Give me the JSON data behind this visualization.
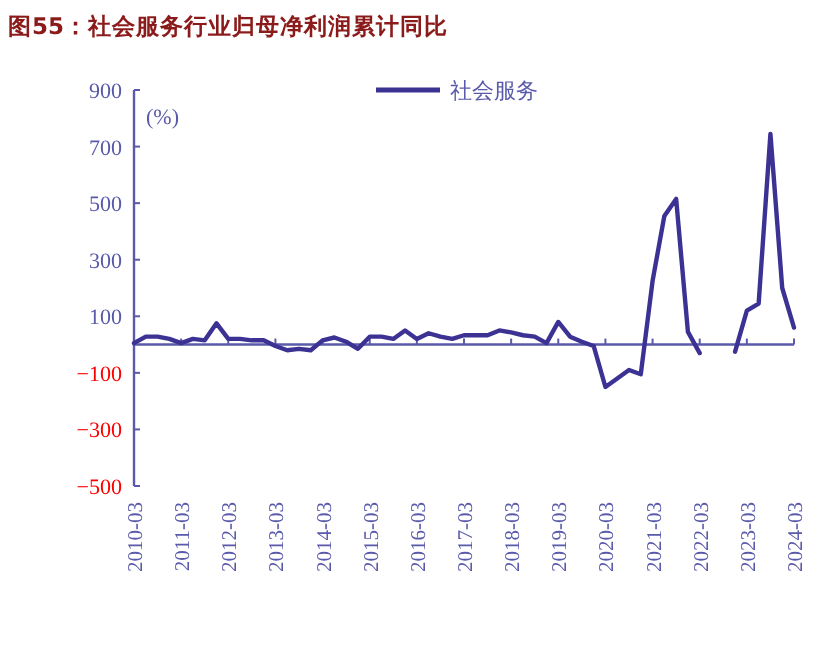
{
  "chart_data": {
    "type": "line",
    "title": "图55：社会服务行业归母净利润累计同比",
    "ylabel": "(%)",
    "x": [
      "2010-03",
      "2010-06",
      "2010-09",
      "2010-12",
      "2011-03",
      "2011-06",
      "2011-09",
      "2011-12",
      "2012-03",
      "2012-06",
      "2012-09",
      "2012-12",
      "2013-03",
      "2013-06",
      "2013-09",
      "2013-12",
      "2014-03",
      "2014-06",
      "2014-09",
      "2014-12",
      "2015-03",
      "2015-06",
      "2015-09",
      "2015-12",
      "2016-03",
      "2016-06",
      "2016-09",
      "2016-12",
      "2017-03",
      "2017-06",
      "2017-09",
      "2017-12",
      "2018-03",
      "2018-06",
      "2018-09",
      "2018-12",
      "2019-03",
      "2019-06",
      "2019-09",
      "2019-12",
      "2020-03",
      "2020-06",
      "2020-09",
      "2020-12",
      "2021-03",
      "2021-06",
      "2021-09",
      "2021-12",
      "2022-03",
      "2022-06",
      "2022-09",
      "2022-12",
      "2023-03",
      "2023-06",
      "2023-09",
      "2023-12",
      "2024-03"
    ],
    "series": [
      {
        "name": "社会服务",
        "color": "#3c3294",
        "values": [
          5,
          28,
          28,
          20,
          5,
          20,
          15,
          75,
          20,
          20,
          15,
          15,
          -5,
          -20,
          -15,
          -20,
          15,
          25,
          10,
          -15,
          28,
          28,
          20,
          50,
          20,
          40,
          28,
          20,
          33,
          33,
          33,
          50,
          43,
          33,
          28,
          5,
          80,
          28,
          10,
          -5,
          -150,
          -120,
          -90,
          -105,
          225,
          455,
          515,
          45,
          -30,
          null,
          null,
          -25,
          120,
          145,
          745,
          200,
          60
        ]
      }
    ],
    "xlim": [
      "2010-03",
      "2024-03"
    ],
    "xticks": [
      "2010-03",
      "2011-03",
      "2012-03",
      "2013-03",
      "2014-03",
      "2015-03",
      "2016-03",
      "2017-03",
      "2018-03",
      "2019-03",
      "2020-03",
      "2021-03",
      "2022-03",
      "2023-03",
      "2024-03"
    ],
    "ylim": [
      -500,
      900
    ],
    "yticks": [
      -500,
      -300,
      -100,
      100,
      300,
      500,
      700,
      900
    ],
    "ref_lines": [
      {
        "axis": "y",
        "value": 0,
        "color": "#5a5aaa",
        "line_style": "solid"
      }
    ],
    "legend": "top",
    "grid": false,
    "marker": "none",
    "line_style": "solid"
  }
}
